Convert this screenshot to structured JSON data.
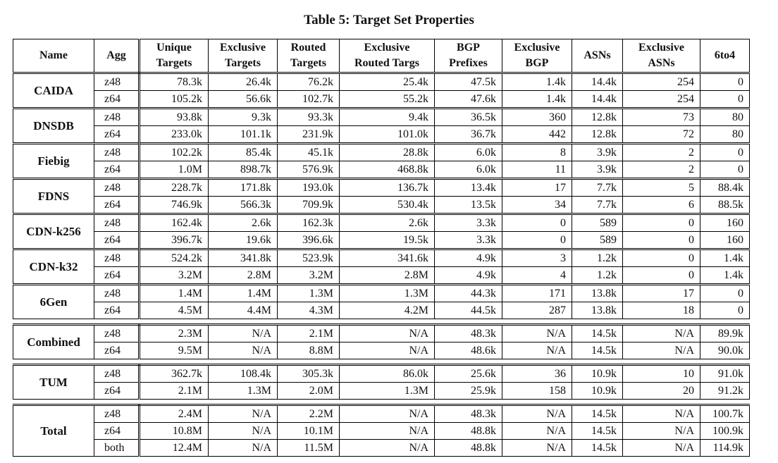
{
  "caption": "Table 5: Target Set Properties",
  "headers": [
    [
      "Name"
    ],
    [
      "Agg"
    ],
    [
      "Unique",
      "Targets"
    ],
    [
      "Exclusive",
      "Targets"
    ],
    [
      "Routed",
      "Targets"
    ],
    [
      "Exclusive",
      "Routed Targs"
    ],
    [
      "BGP",
      "Prefixes"
    ],
    [
      "Exclusive",
      "BGP"
    ],
    [
      "ASNs"
    ],
    [
      "Exclusive",
      "ASNs"
    ],
    [
      "6to4"
    ]
  ],
  "groups": [
    {
      "name": "CAIDA",
      "rows": [
        [
          "z48",
          "78.3k",
          "26.4k",
          "76.2k",
          "25.4k",
          "47.5k",
          "1.4k",
          "14.4k",
          "254",
          "0"
        ],
        [
          "z64",
          "105.2k",
          "56.6k",
          "102.7k",
          "55.2k",
          "47.6k",
          "1.4k",
          "14.4k",
          "254",
          "0"
        ]
      ]
    },
    {
      "name": "DNSDB",
      "rows": [
        [
          "z48",
          "93.8k",
          "9.3k",
          "93.3k",
          "9.4k",
          "36.5k",
          "360",
          "12.8k",
          "73",
          "80"
        ],
        [
          "z64",
          "233.0k",
          "101.1k",
          "231.9k",
          "101.0k",
          "36.7k",
          "442",
          "12.8k",
          "72",
          "80"
        ]
      ]
    },
    {
      "name": "Fiebig",
      "rows": [
        [
          "z48",
          "102.2k",
          "85.4k",
          "45.1k",
          "28.8k",
          "6.0k",
          "8",
          "3.9k",
          "2",
          "0"
        ],
        [
          "z64",
          "1.0M",
          "898.7k",
          "576.9k",
          "468.8k",
          "6.0k",
          "11",
          "3.9k",
          "2",
          "0"
        ]
      ]
    },
    {
      "name": "FDNS",
      "rows": [
        [
          "z48",
          "228.7k",
          "171.8k",
          "193.0k",
          "136.7k",
          "13.4k",
          "17",
          "7.7k",
          "5",
          "88.4k"
        ],
        [
          "z64",
          "746.9k",
          "566.3k",
          "709.9k",
          "530.4k",
          "13.5k",
          "34",
          "7.7k",
          "6",
          "88.5k"
        ]
      ]
    },
    {
      "name": "CDN-k256",
      "rows": [
        [
          "z48",
          "162.4k",
          "2.6k",
          "162.3k",
          "2.6k",
          "3.3k",
          "0",
          "589",
          "0",
          "160"
        ],
        [
          "z64",
          "396.7k",
          "19.6k",
          "396.6k",
          "19.5k",
          "3.3k",
          "0",
          "589",
          "0",
          "160"
        ]
      ]
    },
    {
      "name": "CDN-k32",
      "rows": [
        [
          "z48",
          "524.2k",
          "341.8k",
          "523.9k",
          "341.6k",
          "4.9k",
          "3",
          "1.2k",
          "0",
          "1.4k"
        ],
        [
          "z64",
          "3.2M",
          "2.8M",
          "3.2M",
          "2.8M",
          "4.9k",
          "4",
          "1.2k",
          "0",
          "1.4k"
        ]
      ]
    },
    {
      "name": "6Gen",
      "rows": [
        [
          "z48",
          "1.4M",
          "1.4M",
          "1.3M",
          "1.3M",
          "44.3k",
          "171",
          "13.8k",
          "17",
          "0"
        ],
        [
          "z64",
          "4.5M",
          "4.4M",
          "4.3M",
          "4.2M",
          "44.5k",
          "287",
          "13.8k",
          "18",
          "0"
        ]
      ]
    },
    {
      "name": "Combined",
      "rows": [
        [
          "z48",
          "2.3M",
          "N/A",
          "2.1M",
          "N/A",
          "48.3k",
          "N/A",
          "14.5k",
          "N/A",
          "89.9k"
        ],
        [
          "z64",
          "9.5M",
          "N/A",
          "8.8M",
          "N/A",
          "48.6k",
          "N/A",
          "14.5k",
          "N/A",
          "90.0k"
        ]
      ]
    },
    {
      "name": "TUM",
      "rows": [
        [
          "z48",
          "362.7k",
          "108.4k",
          "305.3k",
          "86.0k",
          "25.6k",
          "36",
          "10.9k",
          "10",
          "91.0k"
        ],
        [
          "z64",
          "2.1M",
          "1.3M",
          "2.0M",
          "1.3M",
          "25.9k",
          "158",
          "10.9k",
          "20",
          "91.2k"
        ]
      ]
    },
    {
      "name": "Total",
      "rows": [
        [
          "z48",
          "2.4M",
          "N/A",
          "2.2M",
          "N/A",
          "48.3k",
          "N/A",
          "14.5k",
          "N/A",
          "100.7k"
        ],
        [
          "z64",
          "10.8M",
          "N/A",
          "10.1M",
          "N/A",
          "48.8k",
          "N/A",
          "14.5k",
          "N/A",
          "100.9k"
        ],
        [
          "both",
          "12.4M",
          "N/A",
          "11.5M",
          "N/A",
          "48.8k",
          "N/A",
          "14.5k",
          "N/A",
          "114.9k"
        ]
      ]
    }
  ]
}
